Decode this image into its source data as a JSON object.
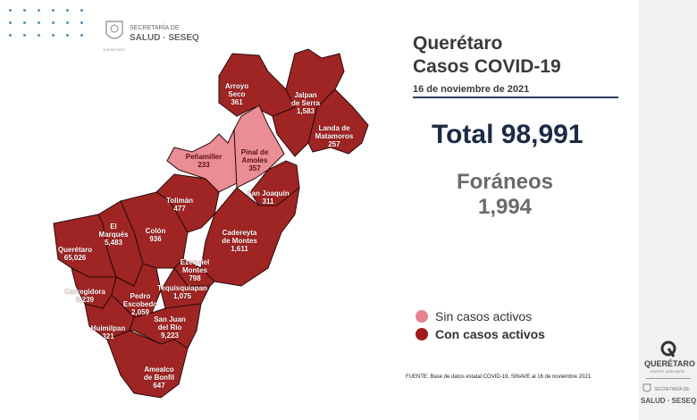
{
  "header": {
    "logo_line1": "SECRETARÍA DE",
    "logo_line2": "SALUD · SESEQ",
    "logo_sub": "QUERÉTARO"
  },
  "title_line1": "Querétaro",
  "title_line2": "Casos COVID-19",
  "date": "16 de noviembre de 2021",
  "total": "Total 98,991",
  "foraneos_label": "Foráneos",
  "foraneos_value": "1,994",
  "legend": [
    {
      "label": "Sin casos activos",
      "color": "#e8838e"
    },
    {
      "label": "Con casos activos",
      "color": "#a01c1c"
    }
  ],
  "colors": {
    "active": "#9e2524",
    "inactive": "#ea8d95"
  },
  "source": "FUENTE: Base de datos estatal COVID-19, SINAVE al 16 de noviembre 2021",
  "side_logo": {
    "name": "QUERÉTARO",
    "tagline": "JUNTOS, ADELANTE",
    "sec1": "SECRETARÍA DE",
    "sec2": "SALUD · SESEQ"
  },
  "municipalities": [
    {
      "name": "Arroyo Seco",
      "cases": "361",
      "active": true
    },
    {
      "name": "Jalpan de Serra",
      "cases": "1,583",
      "active": true
    },
    {
      "name": "Landa de Matamoros",
      "cases": "257",
      "active": true
    },
    {
      "name": "Peñamiller",
      "cases": "233",
      "active": false
    },
    {
      "name": "Pinal de Amoles",
      "cases": "357",
      "active": false
    },
    {
      "name": "San Joaquín",
      "cases": "311",
      "active": true
    },
    {
      "name": "Tolimán",
      "cases": "477",
      "active": true
    },
    {
      "name": "Cadereyta de Montes",
      "cases": "1,611",
      "active": true
    },
    {
      "name": "Colón",
      "cases": "936",
      "active": true
    },
    {
      "name": "El Marqués",
      "cases": "5,483",
      "active": true
    },
    {
      "name": "Querétaro",
      "cases": "65,026",
      "active": true
    },
    {
      "name": "Ezequiel Montes",
      "cases": "798",
      "active": true
    },
    {
      "name": "Corregidora",
      "cases": "6,239",
      "active": true
    },
    {
      "name": "Pedro Escobedo",
      "cases": "2,059",
      "active": true
    },
    {
      "name": "Tequisquiapan",
      "cases": "1,075",
      "active": true
    },
    {
      "name": "Huimilpan",
      "cases": "321",
      "active": true
    },
    {
      "name": "San Juan del Río",
      "cases": "9,223",
      "active": true
    },
    {
      "name": "Amealco de Bonfil",
      "cases": "647",
      "active": true
    }
  ]
}
